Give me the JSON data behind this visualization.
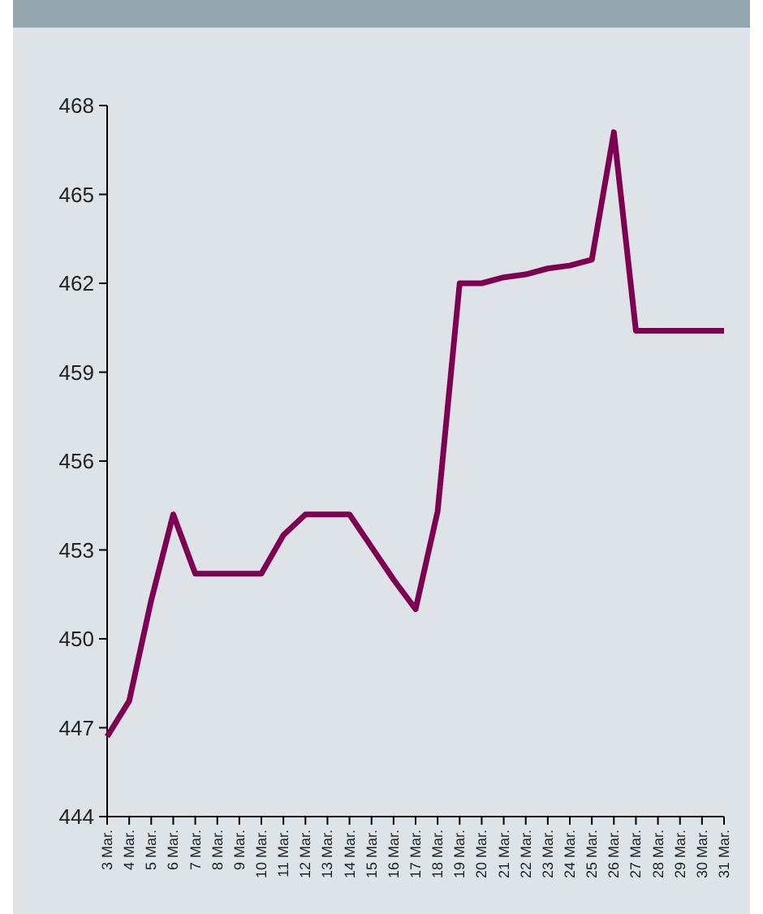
{
  "chart_data": {
    "type": "line",
    "categories": [
      "3 Mar.",
      "4 Mar.",
      "5 Mar.",
      "6 Mar.",
      "7 Mar.",
      "8 Mar.",
      "9 Mar.",
      "10 Mar.",
      "11 Mar.",
      "12 Mar.",
      "13 Mar.",
      "14 Mar.",
      "15 Mar.",
      "16 Mar.",
      "17 Mar.",
      "18 Mar.",
      "19 Mar.",
      "20 Mar.",
      "21 Mar.",
      "22 Mar.",
      "23 Mar.",
      "24 Mar.",
      "25 Mar.",
      "26 Mar.",
      "27 Mar.",
      "28 Mar.",
      "29 Mar.",
      "30 Mar.",
      "31 Mar."
    ],
    "series": [
      {
        "color": "#7d0052",
        "values": [
          446.7,
          447.9,
          451.3,
          454.2,
          452.2,
          452.2,
          452.2,
          452.2,
          453.5,
          454.2,
          454.2,
          454.2,
          453.1,
          452.0,
          451.0,
          454.3,
          462.0,
          462.0,
          462.2,
          462.3,
          462.5,
          462.6,
          462.8,
          467.1,
          460.4,
          460.4,
          460.4,
          460.4,
          460.4
        ]
      }
    ],
    "ylim": [
      444,
      468
    ],
    "yticks": [
      444,
      447,
      450,
      453,
      456,
      459,
      462,
      465,
      468
    ],
    "marker": "none",
    "line_style": "solid",
    "grid": false
  }
}
